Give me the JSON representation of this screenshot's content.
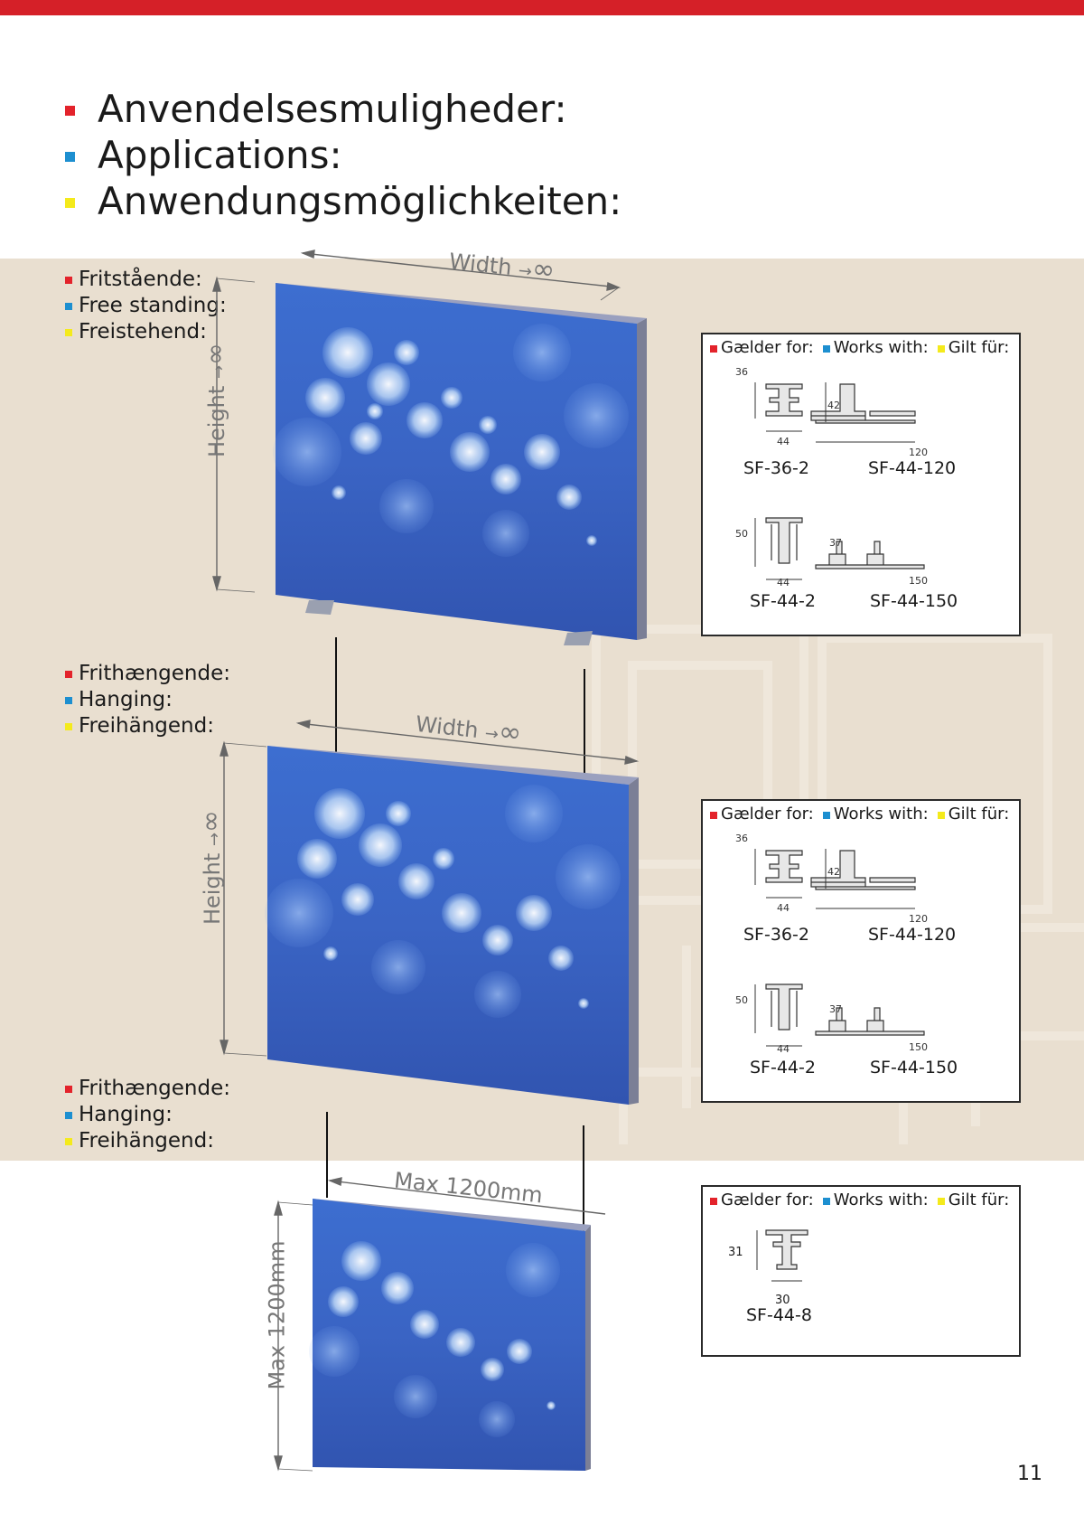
{
  "header": {
    "items": [
      {
        "text": "Anvendelsesmuligheder:",
        "color": "#e3232b"
      },
      {
        "text": "Applications:",
        "color": "#1d8fd0"
      },
      {
        "text": "Anwendungsmöglichkeiten:",
        "color": "#f4ea1c"
      }
    ]
  },
  "sections": [
    {
      "labels": [
        "Fritstående:",
        "Free standing:",
        "Freistehend:"
      ],
      "width_label": "Width",
      "height_label": "Height"
    },
    {
      "labels": [
        "Frithængende:",
        "Hanging:",
        "Freihängend:"
      ],
      "width_label": "Width",
      "height_label": "Height"
    },
    {
      "labels": [
        "Frithængende:",
        "Hanging:",
        "Freihängend:"
      ],
      "width_label": "Max 1200mm",
      "height_label": "Max 1200mm"
    }
  ],
  "infobox_legend": [
    "Gælder for:",
    "Works with:",
    "Gilt für:"
  ],
  "profiles_full": [
    {
      "name": "SF-36-2",
      "height": "36",
      "width": "44"
    },
    {
      "name": "SF-44-120",
      "height": "42",
      "width": "120"
    },
    {
      "name": "SF-44-2",
      "height": "50",
      "width": "44"
    },
    {
      "name": "SF-44-150",
      "height": "37",
      "width": "150"
    }
  ],
  "profile_small": {
    "name": "SF-44-8",
    "height": "31",
    "width": "30"
  },
  "infinity_symbol": "∞",
  "page_number": "11",
  "colors": {
    "accent_red": "#e3232b",
    "accent_blue": "#1d8fd0",
    "accent_yellow": "#f4ea1c",
    "beige": "#e9dfd0"
  }
}
